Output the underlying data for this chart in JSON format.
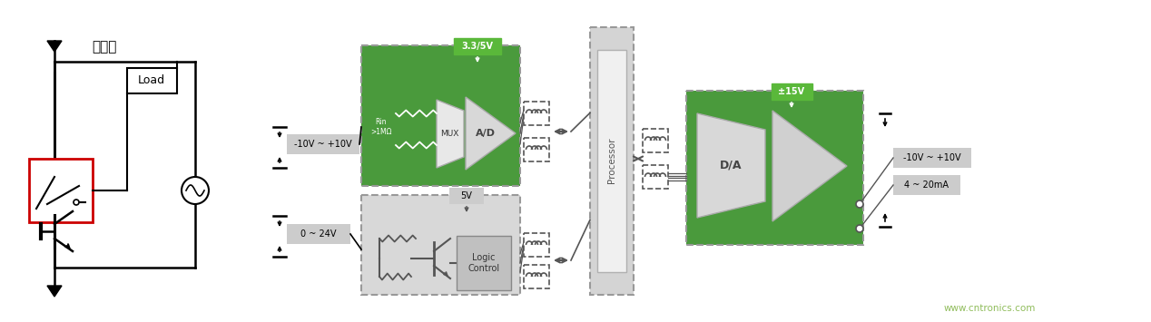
{
  "bg_color": "#ffffff",
  "green_color": "#4a9a3c",
  "gray_light": "#d4d4d4",
  "gray_label": "#cccccc",
  "dashed_border": "#999999",
  "red_color": "#cc0000",
  "black": "#000000",
  "white": "#ffffff",
  "watermark": "www.cntronics.com",
  "watermark_color": "#8fbc5a",
  "label_10v": "-10V ~ +10V",
  "label_24v": "0 ~ 24V",
  "label_33v": "3.3/5V",
  "label_5v": "5V",
  "label_ad": "A/D",
  "label_da": "D/A",
  "label_mux": "MUX",
  "label_logic": "Logic\nControl",
  "label_processor": "Processor",
  "label_15v": "±15V",
  "label_out10v": "-10V ~ +10V",
  "label_out20ma": "4 ~ 20mA",
  "label_relay": "继电器",
  "label_load": "Load",
  "label_rin": "Rin\n>1MΩ"
}
